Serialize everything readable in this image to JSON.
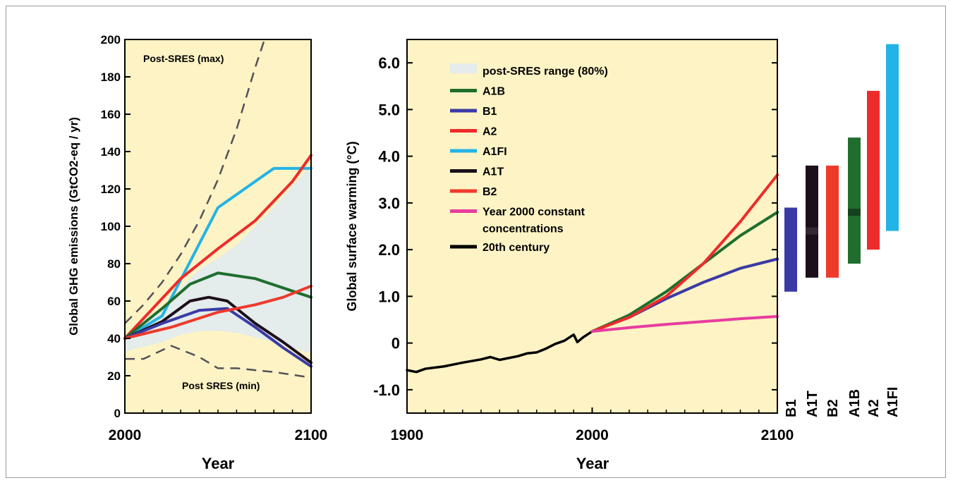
{
  "colors": {
    "panel_bg": "#fdf3c4",
    "range_fill": "#e4ecec",
    "A1B": "#1f6e2e",
    "B1": "#3a3aa6",
    "A2": "#ee2b2b",
    "A1FI": "#22b4e6",
    "A1T": "#1c0f1a",
    "B2": "#ee3a2b",
    "const": "#e83ca0",
    "century": "#000000",
    "dashed": "#55505a"
  },
  "chart_data": [
    {
      "type": "line",
      "xlabel": "Year",
      "ylabel": "Global GHG emissions (GtCO2-eq / yr)",
      "xlim": [
        2000,
        2100
      ],
      "ylim": [
        0,
        200
      ],
      "x_ticks": [
        "2000",
        "2100"
      ],
      "y_ticks": [
        "0",
        "20",
        "40",
        "60",
        "80",
        "100",
        "120",
        "140",
        "160",
        "180",
        "200"
      ],
      "annotations": [
        "Post-SRES (max)",
        "Post SRES (min)"
      ],
      "range_band": {
        "x": [
          2000,
          2020,
          2030,
          2040,
          2050,
          2060,
          2080,
          2100
        ],
        "low": [
          33,
          38,
          42,
          44,
          44,
          43,
          38,
          32
        ],
        "high": [
          41,
          56,
          67,
          77,
          83,
          90,
          110,
          133
        ]
      },
      "dashed_max": {
        "x": [
          2000,
          2010,
          2020,
          2030,
          2040,
          2050,
          2060,
          2070,
          2075
        ],
        "y": [
          48,
          58,
          70,
          85,
          103,
          125,
          152,
          185,
          200
        ]
      },
      "dashed_min": {
        "x": [
          2000,
          2010,
          2025,
          2040,
          2050,
          2060,
          2080,
          2100
        ],
        "y": [
          29,
          29,
          36,
          30,
          24,
          24,
          22,
          19
        ]
      },
      "series": [
        {
          "key": "A1FI",
          "x": [
            2000,
            2020,
            2050,
            2080,
            2100
          ],
          "y": [
            40,
            52,
            110,
            131,
            131
          ]
        },
        {
          "key": "A2",
          "x": [
            2000,
            2030,
            2050,
            2070,
            2090,
            2100
          ],
          "y": [
            40,
            72,
            88,
            103,
            124,
            138
          ]
        },
        {
          "key": "A1B",
          "x": [
            2000,
            2020,
            2035,
            2050,
            2070,
            2085,
            2100
          ],
          "y": [
            40,
            56,
            69,
            75,
            72,
            67,
            62
          ]
        },
        {
          "key": "A1T",
          "x": [
            2000,
            2020,
            2035,
            2045,
            2055,
            2070,
            2085,
            2100
          ],
          "y": [
            40,
            49,
            60,
            62,
            60,
            48,
            38,
            27
          ]
        },
        {
          "key": "B1",
          "x": [
            2000,
            2020,
            2040,
            2055,
            2070,
            2085,
            2100
          ],
          "y": [
            40,
            48,
            55,
            56,
            46,
            35,
            25
          ]
        },
        {
          "key": "B2",
          "x": [
            2000,
            2025,
            2050,
            2070,
            2085,
            2100
          ],
          "y": [
            40,
            46,
            54,
            58,
            62,
            68
          ]
        }
      ]
    },
    {
      "type": "line",
      "xlabel": "Year",
      "ylabel": "Global surface warming (°C)",
      "xlim": [
        1900,
        2100
      ],
      "ylim": [
        -1.5,
        6.5
      ],
      "x_ticks": [
        "1900",
        "2000",
        "2100"
      ],
      "y_ticks": [
        "-1.0",
        "0",
        "1.0",
        "2.0",
        "3.0",
        "4.0",
        "5.0",
        "6.0"
      ],
      "legend": [
        {
          "key": "range",
          "label": "post-SRES range (80%)"
        },
        {
          "key": "A1B",
          "label": "A1B"
        },
        {
          "key": "B1",
          "label": "B1"
        },
        {
          "key": "A2",
          "label": "A2"
        },
        {
          "key": "A1FI",
          "label": "A1FI"
        },
        {
          "key": "A1T",
          "label": "A1T"
        },
        {
          "key": "B2",
          "label": "B2"
        },
        {
          "key": "const",
          "label": "Year 2000 constant",
          "label2": "concentrations"
        },
        {
          "key": "century",
          "label": "20th century"
        }
      ],
      "series": [
        {
          "key": "century",
          "x": [
            1900,
            1905,
            1910,
            1920,
            1930,
            1940,
            1945,
            1950,
            1960,
            1965,
            1970,
            1975,
            1980,
            1985,
            1990,
            1992,
            1995,
            2000
          ],
          "y": [
            -0.58,
            -0.62,
            -0.55,
            -0.5,
            -0.42,
            -0.35,
            -0.3,
            -0.36,
            -0.28,
            -0.22,
            -0.2,
            -0.12,
            -0.02,
            0.05,
            0.18,
            0.02,
            0.12,
            0.25
          ]
        },
        {
          "key": "A1B",
          "x": [
            2000,
            2020,
            2040,
            2060,
            2080,
            2100
          ],
          "y": [
            0.25,
            0.6,
            1.1,
            1.7,
            2.3,
            2.8
          ]
        },
        {
          "key": "B1",
          "x": [
            2000,
            2020,
            2040,
            2060,
            2080,
            2100
          ],
          "y": [
            0.25,
            0.55,
            0.95,
            1.3,
            1.6,
            1.8
          ]
        },
        {
          "key": "A2",
          "x": [
            2000,
            2020,
            2040,
            2060,
            2080,
            2100
          ],
          "y": [
            0.25,
            0.55,
            1.0,
            1.7,
            2.6,
            3.6
          ]
        },
        {
          "key": "const",
          "x": [
            2000,
            2020,
            2040,
            2060,
            2080,
            2100
          ],
          "y": [
            0.25,
            0.33,
            0.4,
            0.46,
            0.52,
            0.57
          ]
        }
      ]
    },
    {
      "type": "bar",
      "categories": [
        "B1",
        "A1T",
        "B2",
        "A1B",
        "A2",
        "A1FI"
      ],
      "ranges": [
        {
          "key": "B1",
          "low": 1.1,
          "high": 2.9,
          "best": 1.8
        },
        {
          "key": "A1T",
          "low": 1.4,
          "high": 3.8,
          "best": 2.4
        },
        {
          "key": "B2",
          "low": 1.4,
          "high": 3.8,
          "best": 2.4
        },
        {
          "key": "A1B",
          "low": 1.7,
          "high": 4.4,
          "best": 2.8
        },
        {
          "key": "A2",
          "low": 2.0,
          "high": 5.4,
          "best": 3.4
        },
        {
          "key": "A1FI",
          "low": 2.4,
          "high": 6.4,
          "best": 4.0
        }
      ]
    }
  ]
}
